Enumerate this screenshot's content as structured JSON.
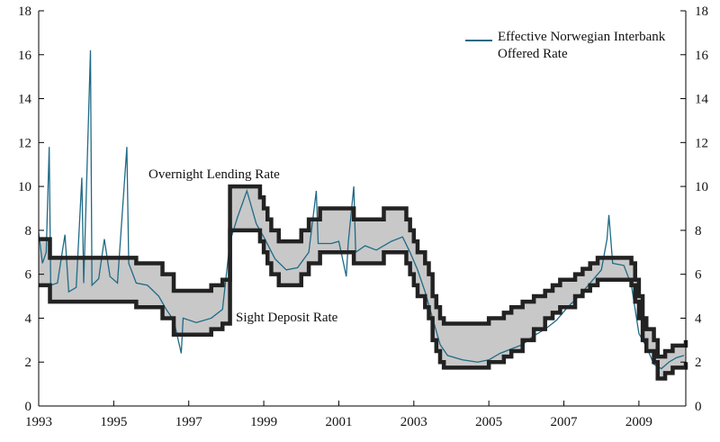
{
  "chart_data": {
    "type": "line",
    "annotations": [
      "Overnight Lending Rate",
      "Sight Deposit Rate"
    ],
    "xlim": [
      1993,
      2010.25
    ],
    "xticks": [
      1993,
      1995,
      1997,
      1999,
      2001,
      2003,
      2005,
      2007,
      2009
    ],
    "ylim": [
      0,
      18
    ],
    "yticks": [
      0,
      2,
      4,
      6,
      8,
      10,
      12,
      14,
      16,
      18
    ],
    "y2lim": [
      0,
      18
    ],
    "y2ticks": [
      0,
      2,
      4,
      6,
      8,
      10,
      12,
      14,
      16,
      18
    ],
    "corridor_color": "#c8c8c8",
    "legend": "upper right",
    "series": [
      {
        "name": "Effective Norwegian Interbank Offered Rate",
        "color": "#1f6a86",
        "step": false,
        "x": [
          1993.0,
          1993.1,
          1993.2,
          1993.28,
          1993.32,
          1993.5,
          1993.7,
          1993.8,
          1994.0,
          1994.15,
          1994.2,
          1994.38,
          1994.42,
          1994.6,
          1994.75,
          1994.9,
          1995.1,
          1995.35,
          1995.4,
          1995.6,
          1995.9,
          1996.2,
          1996.4,
          1996.6,
          1996.8,
          1996.85,
          1997.2,
          1997.6,
          1997.9,
          1998.1,
          1998.3,
          1998.55,
          1998.8,
          1999.0,
          1999.3,
          1999.6,
          1999.9,
          2000.2,
          2000.4,
          2000.45,
          2000.8,
          2001.0,
          2001.2,
          2001.25,
          2001.4,
          2001.45,
          2001.7,
          2002.0,
          2002.4,
          2002.7,
          2002.9,
          2003.1,
          2003.3,
          2003.5,
          2003.7,
          2003.9,
          2004.3,
          2004.7,
          2005.0,
          2005.3,
          2005.6,
          2005.9,
          2006.2,
          2006.5,
          2006.8,
          2007.1,
          2007.4,
          2007.7,
          2008.0,
          2008.15,
          2008.2,
          2008.3,
          2008.6,
          2008.8,
          2009.0,
          2009.2,
          2009.4,
          2009.6,
          2009.8,
          2010.0,
          2010.2
        ],
        "values": [
          7.9,
          6.5,
          7.0,
          11.8,
          5.5,
          5.6,
          7.8,
          5.2,
          5.4,
          10.4,
          5.6,
          16.2,
          5.5,
          5.8,
          7.6,
          5.9,
          5.6,
          11.8,
          6.5,
          5.6,
          5.5,
          5.0,
          4.4,
          3.9,
          2.4,
          4.0,
          3.8,
          4.0,
          4.4,
          7.5,
          8.6,
          9.8,
          8.3,
          7.7,
          6.7,
          6.2,
          6.3,
          7.0,
          9.8,
          7.4,
          7.4,
          7.5,
          5.9,
          7.4,
          10.0,
          7.0,
          7.3,
          7.1,
          7.5,
          7.7,
          7.0,
          6.2,
          5.2,
          4.0,
          2.8,
          2.3,
          2.1,
          2.0,
          2.1,
          2.4,
          2.6,
          2.8,
          3.2,
          3.5,
          3.9,
          4.5,
          5.0,
          5.6,
          6.2,
          7.6,
          8.7,
          6.5,
          6.4,
          5.5,
          3.3,
          2.7,
          1.9,
          1.7,
          2.0,
          2.2,
          2.3
        ]
      },
      {
        "color": "#222222",
        "step": true,
        "x": [
          1993.0,
          1993.3,
          1995.6,
          1996.3,
          1996.6,
          1997.6,
          1997.9,
          1998.1,
          1998.9,
          1999.0,
          1999.1,
          1999.2,
          1999.4,
          2000.0,
          2000.2,
          2000.5,
          2001.4,
          2002.2,
          2002.8,
          2002.9,
          2003.0,
          2003.1,
          2003.3,
          2003.4,
          2003.5,
          2003.6,
          2003.7,
          2003.8,
          2005.0,
          2005.4,
          2005.6,
          2005.9,
          2006.2,
          2006.5,
          2006.7,
          2006.9,
          2007.3,
          2007.5,
          2007.7,
          2007.9,
          2008.8,
          2008.9,
          2009.0,
          2009.1,
          2009.2,
          2009.4,
          2009.5,
          2009.7,
          2009.9,
          2010.25
        ],
        "values": [
          7.6,
          6.75,
          6.5,
          6.0,
          5.25,
          5.5,
          5.75,
          10.0,
          9.5,
          9.0,
          8.5,
          8.0,
          7.5,
          8.0,
          8.5,
          9.0,
          8.5,
          9.0,
          8.5,
          8.0,
          7.5,
          7.0,
          6.5,
          6.0,
          5.0,
          4.5,
          4.0,
          3.75,
          4.0,
          4.25,
          4.5,
          4.75,
          5.0,
          5.25,
          5.5,
          5.75,
          6.0,
          6.25,
          6.5,
          6.75,
          6.5,
          5.75,
          5.0,
          4.0,
          3.5,
          3.0,
          2.25,
          2.5,
          2.75,
          3.0
        ]
      },
      {
        "color": "#222222",
        "step": true,
        "x": [
          1993.0,
          1993.3,
          1995.6,
          1996.3,
          1996.6,
          1997.6,
          1997.9,
          1998.1,
          1998.9,
          1999.0,
          1999.1,
          1999.2,
          1999.4,
          2000.0,
          2000.2,
          2000.5,
          2001.4,
          2002.2,
          2002.8,
          2002.9,
          2003.0,
          2003.1,
          2003.3,
          2003.4,
          2003.5,
          2003.6,
          2003.7,
          2003.8,
          2005.0,
          2005.4,
          2005.6,
          2005.9,
          2006.2,
          2006.5,
          2006.7,
          2006.9,
          2007.3,
          2007.5,
          2007.7,
          2007.9,
          2008.8,
          2008.9,
          2009.0,
          2009.1,
          2009.2,
          2009.4,
          2009.5,
          2009.7,
          2009.9,
          2010.25
        ],
        "values": [
          5.5,
          4.75,
          4.5,
          4.0,
          3.25,
          3.5,
          3.75,
          8.0,
          7.5,
          7.0,
          6.5,
          6.0,
          5.5,
          6.0,
          6.5,
          7.0,
          6.5,
          7.0,
          6.5,
          6.0,
          5.5,
          5.0,
          4.5,
          4.0,
          3.0,
          2.5,
          2.0,
          1.75,
          2.0,
          2.25,
          2.5,
          3.0,
          3.5,
          4.0,
          4.25,
          4.5,
          5.0,
          5.25,
          5.5,
          5.75,
          5.5,
          4.75,
          4.0,
          3.0,
          2.5,
          2.0,
          1.25,
          1.5,
          1.75,
          2.0
        ]
      }
    ]
  }
}
